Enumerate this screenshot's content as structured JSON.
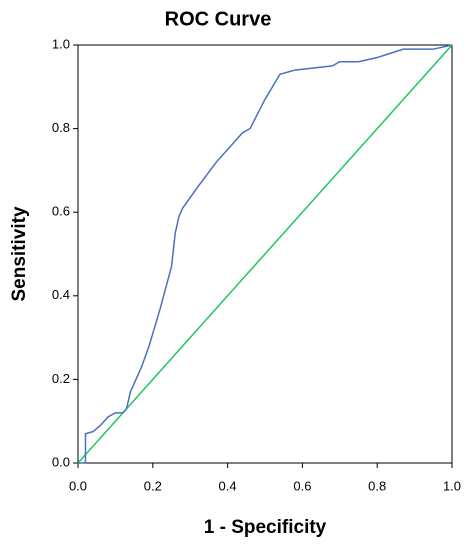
{
  "chart_data": {
    "type": "line",
    "title": "ROC Curve",
    "x_label": "1 - Specificity",
    "y_label": "Sensitivity",
    "xlim": [
      0,
      1
    ],
    "ylim": [
      0,
      1
    ],
    "xticks": [
      {
        "value": 0,
        "label": "0.0"
      },
      0.2,
      0.4,
      0.6,
      0.8,
      {
        "value": 1,
        "label": "1.0"
      }
    ],
    "yticks": [
      {
        "value": 0,
        "label": "0.0"
      },
      0.2,
      0.4,
      0.6,
      0.8,
      {
        "value": 1,
        "label": "1.0"
      }
    ],
    "grid": false,
    "series": [
      {
        "color": "#4a6fc2",
        "x": [
          0,
          0.02,
          0.02,
          0.04,
          0.06,
          0.07,
          0.08,
          0.1,
          0.12,
          0.13,
          0.14,
          0.17,
          0.19,
          0.2,
          0.22,
          0.25,
          0.26,
          0.27,
          0.28,
          0.32,
          0.37,
          0.42,
          0.44,
          0.46,
          0.5,
          0.54,
          0.58,
          0.68,
          0.7,
          0.75,
          0.8,
          0.87,
          0.95,
          1
        ],
        "values": [
          0,
          0,
          0.07,
          0.075,
          0.09,
          0.1,
          0.11,
          0.12,
          0.12,
          0.13,
          0.17,
          0.23,
          0.28,
          0.31,
          0.37,
          0.47,
          0.55,
          0.59,
          0.61,
          0.66,
          0.72,
          0.77,
          0.79,
          0.8,
          0.87,
          0.93,
          0.94,
          0.95,
          0.96,
          0.96,
          0.97,
          0.99,
          0.99,
          1
        ]
      },
      {
        "color": "#22c55e",
        "x": [
          0,
          1
        ],
        "values": [
          0,
          1
        ]
      }
    ]
  }
}
